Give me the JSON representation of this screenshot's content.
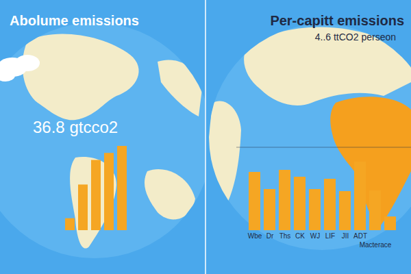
{
  "chart_data": [
    {
      "type": "bar",
      "title": "Abolume emissions",
      "annotation": "36.8 gtcco2",
      "categories": [
        null,
        null,
        null,
        null,
        null
      ],
      "values": [
        17,
        65,
        100,
        110,
        120
      ],
      "color": "#f5a623",
      "ylim": [
        0,
        120
      ],
      "tick_labels": false
    },
    {
      "type": "bar",
      "title": "Per-capitt emissions",
      "subtitle": "4..6 ttCO2 perseon",
      "categories": [
        "Wbe",
        "Dr",
        "Ths",
        "CK",
        "WJ",
        "LIF",
        "JII",
        "ADT",
        "Macterace",
        null
      ],
      "values": [
        85,
        60,
        88,
        78,
        60,
        75,
        57,
        100,
        58,
        20
      ],
      "color": "#f5a623",
      "ylim": [
        0,
        100
      ],
      "tick_labels": "x"
    }
  ]
}
